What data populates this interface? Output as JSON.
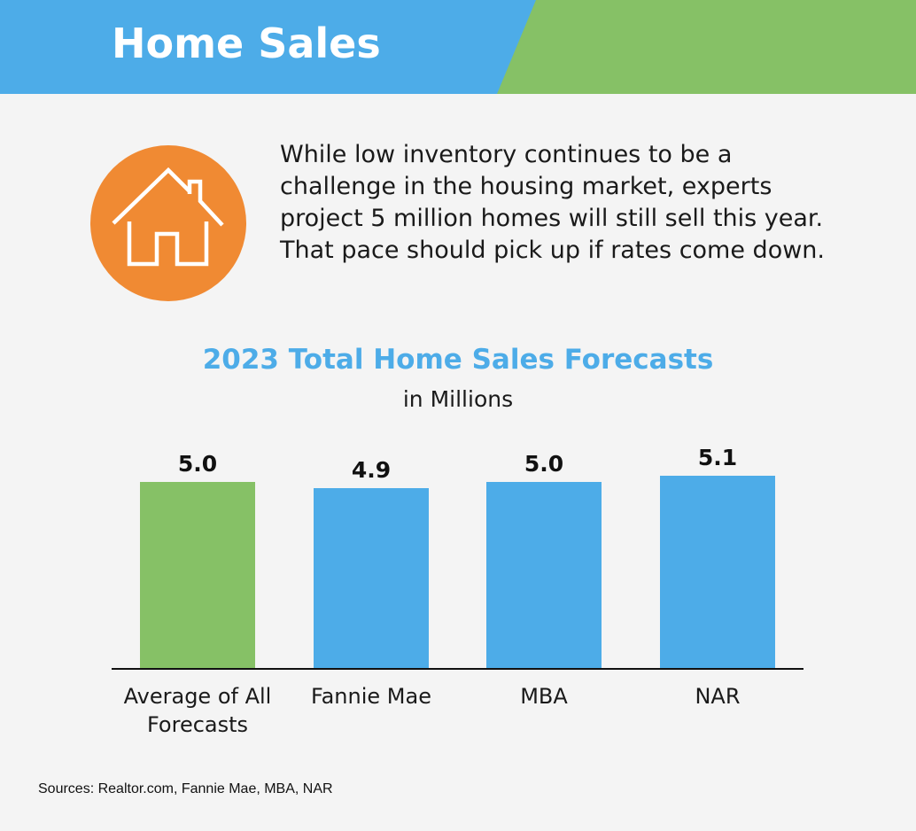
{
  "header": {
    "title": "Home Sales",
    "colors": {
      "blue": "#4dace8",
      "green": "#86c166"
    }
  },
  "intro": {
    "icon": "house-icon",
    "icon_color": "#f08a33",
    "text": "While low inventory continues to be a challenge in the housing market, experts project 5 million homes will still sell this year. That pace should pick up if rates come down."
  },
  "chart_data": {
    "type": "bar",
    "title": "2023 Total Home Sales Forecasts",
    "subtitle": "in Millions",
    "categories": [
      "Average of All Forecasts",
      "Fannie Mae",
      "MBA",
      "NAR"
    ],
    "values": [
      5.0,
      4.9,
      5.0,
      5.1
    ],
    "labels": [
      "5.0",
      "4.9",
      "5.0",
      "5.1"
    ],
    "colors": [
      "#86c166",
      "#4dace8",
      "#4dace8",
      "#4dace8"
    ],
    "xlabel": "",
    "ylabel": "",
    "ylim": [
      2,
      5.1
    ],
    "grid": false
  },
  "footer": {
    "sources": "Sources: Realtor.com, Fannie Mae, MBA, NAR"
  }
}
